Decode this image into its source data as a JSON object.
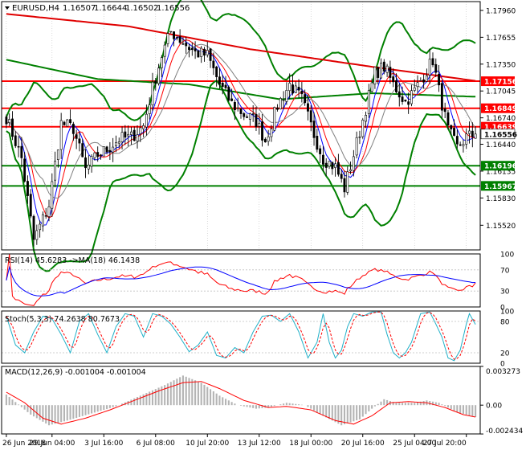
{
  "header": {
    "symbol_label": "EURUSD,H4",
    "ohlc": [
      "1.16507",
      "1.16644",
      "1.16502",
      "1.16556"
    ]
  },
  "colors": {
    "background": "#ffffff",
    "frame": "#000000",
    "grid": "#c0c0c0",
    "candle": "#000000",
    "bollinger": "#008000",
    "sma200": "#e00000",
    "sma50": "#008000",
    "ma_blue": "#0000ff",
    "ma_red": "#ff0000",
    "ma_gray": "#808080",
    "resistance": "#ff0000",
    "support": "#008000",
    "current_price": "#808080",
    "rsi_line": "#ff0000",
    "rsi_ma": "#0000ff",
    "stoch_main": "#20b0c8",
    "stoch_signal": "#ff0000",
    "macd_hist": "#b4b4b4",
    "macd_signal": "#ff0000"
  },
  "price_axis": {
    "min": 1.1524,
    "max": 1.1806,
    "ticks": [
      "1.17960",
      "1.17655",
      "1.17350",
      "1.17045",
      "1.16740",
      "1.16440",
      "1.16135",
      "1.15830",
      "1.15520"
    ]
  },
  "time_axis": {
    "labels": [
      "26 Jun 2018",
      "29 Jun 04:00",
      "3 Jul 16:00",
      "6 Jul 08:00",
      "10 Jul 20:00",
      "13 Jul 12:00",
      "18 Jul 00:00",
      "20 Jul 16:00",
      "25 Jul 04:00",
      "27 Jul 20:00"
    ],
    "label_bars": [
      0,
      15,
      32,
      49,
      66,
      83,
      100,
      117,
      134,
      151
    ]
  },
  "chart_data": [
    {
      "type": "candlestick",
      "symbol": "EURUSD",
      "timeframe": "H4",
      "last_ohlc": {
        "open": 1.16507,
        "high": 1.16644,
        "low": 1.16502,
        "close": 1.16556
      },
      "anchor_closes": [
        [
          0,
          1.1675
        ],
        [
          5,
          1.1628
        ],
        [
          9,
          1.1535
        ],
        [
          14,
          1.1575
        ],
        [
          18,
          1.1668
        ],
        [
          22,
          1.1662
        ],
        [
          26,
          1.1615
        ],
        [
          30,
          1.1632
        ],
        [
          33,
          1.1638
        ],
        [
          37,
          1.165
        ],
        [
          41,
          1.1652
        ],
        [
          45,
          1.1665
        ],
        [
          48,
          1.1708
        ],
        [
          51,
          1.1745
        ],
        [
          54,
          1.1772
        ],
        [
          58,
          1.176
        ],
        [
          62,
          1.1748
        ],
        [
          66,
          1.1745
        ],
        [
          70,
          1.1712
        ],
        [
          74,
          1.169
        ],
        [
          78,
          1.1678
        ],
        [
          82,
          1.167
        ],
        [
          85,
          1.1648
        ],
        [
          89,
          1.1688
        ],
        [
          93,
          1.1712
        ],
        [
          97,
          1.1695
        ],
        [
          101,
          1.1655
        ],
        [
          104,
          1.1628
        ],
        [
          108,
          1.1618
        ],
        [
          111,
          1.1594
        ],
        [
          114,
          1.1632
        ],
        [
          118,
          1.1685
        ],
        [
          121,
          1.1725
        ],
        [
          124,
          1.1732
        ],
        [
          127,
          1.1712
        ],
        [
          131,
          1.1692
        ],
        [
          134,
          1.1705
        ],
        [
          137,
          1.1722
        ],
        [
          140,
          1.174
        ],
        [
          142,
          1.1705
        ],
        [
          145,
          1.166
        ],
        [
          148,
          1.164
        ],
        [
          151,
          1.1652
        ],
        [
          154,
          1.1655
        ]
      ],
      "bars": 155,
      "ma_periods": [
        5,
        8,
        13
      ],
      "sma_long_periods": [
        200,
        50
      ],
      "bollinger": {
        "period": 20,
        "deviations": 2
      },
      "sma200_anchors": [
        [
          0,
          1.1792
        ],
        [
          40,
          1.1778
        ],
        [
          80,
          1.1752
        ],
        [
          120,
          1.1732
        ],
        [
          154,
          1.1716
        ]
      ],
      "sma50_anchors": [
        [
          0,
          1.174
        ],
        [
          30,
          1.1718
        ],
        [
          60,
          1.1712
        ],
        [
          90,
          1.1695
        ],
        [
          120,
          1.1702
        ],
        [
          154,
          1.1698
        ]
      ],
      "horizontal_levels": [
        {
          "price": 1.17156,
          "label": "1.17156",
          "kind": "resistance"
        },
        {
          "price": 1.16849,
          "label": "1.16849",
          "kind": "resistance"
        },
        {
          "price": 1.16639,
          "label": "1.16639",
          "kind": "resistance"
        },
        {
          "price": 1.16556,
          "label": "1.16556",
          "kind": "current"
        },
        {
          "price": 1.16196,
          "label": "1.16196",
          "kind": "support"
        },
        {
          "price": 1.15967,
          "label": "1.15967",
          "kind": "support"
        }
      ]
    },
    {
      "type": "line",
      "indicator": "RSI",
      "period": 14,
      "ma_period": 18,
      "title": "RSI(14) 45.6283 ->MA(18) 46.1438",
      "last_value": 45.6283,
      "ma_last_value": 46.1438,
      "ylim": [
        0,
        100
      ],
      "ticks": [
        "100",
        "70",
        "30",
        "0"
      ],
      "levels": [
        70,
        30
      ]
    },
    {
      "type": "line",
      "indicator": "Stochastic",
      "params": [
        5,
        3,
        3
      ],
      "title": "Stoch(5,3,3) 74.2638 80.7673",
      "main_last": 74.2638,
      "signal_last": 80.7673,
      "ylim": [
        0,
        100
      ],
      "ticks": [
        "100",
        "80",
        "20",
        "0"
      ],
      "levels": [
        80,
        20
      ],
      "series": [
        {
          "name": "main",
          "anchors": [
            [
              0,
              90
            ],
            [
              3,
              35
            ],
            [
              6,
              20
            ],
            [
              9,
              60
            ],
            [
              12,
              90
            ],
            [
              15,
              85
            ],
            [
              18,
              55
            ],
            [
              21,
              20
            ],
            [
              24,
              80
            ],
            [
              27,
              95
            ],
            [
              30,
              55
            ],
            [
              33,
              20
            ],
            [
              36,
              70
            ],
            [
              39,
              95
            ],
            [
              42,
              90
            ],
            [
              45,
              50
            ],
            [
              48,
              95
            ],
            [
              51,
              90
            ],
            [
              54,
              75
            ],
            [
              57,
              50
            ],
            [
              60,
              22
            ],
            [
              63,
              35
            ],
            [
              66,
              60
            ],
            [
              69,
              15
            ],
            [
              72,
              10
            ],
            [
              75,
              30
            ],
            [
              78,
              20
            ],
            [
              81,
              60
            ],
            [
              84,
              90
            ],
            [
              87,
              92
            ],
            [
              90,
              80
            ],
            [
              93,
              95
            ],
            [
              96,
              60
            ],
            [
              99,
              10
            ],
            [
              102,
              40
            ],
            [
              104,
              95
            ],
            [
              106,
              40
            ],
            [
              108,
              10
            ],
            [
              110,
              25
            ],
            [
              112,
              70
            ],
            [
              114,
              95
            ],
            [
              117,
              90
            ],
            [
              120,
              98
            ],
            [
              123,
              98
            ],
            [
              125,
              55
            ],
            [
              127,
              20
            ],
            [
              129,
              10
            ],
            [
              131,
              20
            ],
            [
              133,
              40
            ],
            [
              136,
              95
            ],
            [
              139,
              98
            ],
            [
              141,
              75
            ],
            [
              143,
              50
            ],
            [
              145,
              10
            ],
            [
              147,
              5
            ],
            [
              149,
              25
            ],
            [
              151,
              75
            ],
            [
              152,
              95
            ],
            [
              154,
              74
            ]
          ]
        }
      ]
    },
    {
      "type": "bar",
      "indicator": "MACD",
      "params": [
        12,
        26,
        9
      ],
      "title": "MACD(12,26,9) -0.001004 -0.001004",
      "macd_last": -0.001004,
      "signal_last": -0.001004,
      "ylim": [
        -0.00243,
        0.00327
      ],
      "ticks": [
        "0.003273",
        "0.00",
        "-0.002434"
      ],
      "series": [
        {
          "name": "macd_hist",
          "anchors": [
            [
              0,
              0.0009
            ],
            [
              8,
              -0.0008
            ],
            [
              14,
              -0.0017
            ],
            [
              20,
              -0.0013
            ],
            [
              28,
              -0.0007
            ],
            [
              36,
              -0.0001
            ],
            [
              44,
              0.0008
            ],
            [
              52,
              0.0017
            ],
            [
              58,
              0.0025
            ],
            [
              64,
              0.0019
            ],
            [
              70,
              0.0008
            ],
            [
              76,
              0.0
            ],
            [
              82,
              -0.0003
            ],
            [
              86,
              -0.0002
            ],
            [
              92,
              0.0002
            ],
            [
              98,
              0.0
            ],
            [
              104,
              -0.0009
            ],
            [
              110,
              -0.0017
            ],
            [
              116,
              -0.0012
            ],
            [
              120,
              -0.0003
            ],
            [
              124,
              0.0005
            ],
            [
              128,
              0.0002
            ],
            [
              134,
              0.0002
            ],
            [
              138,
              0.0004
            ],
            [
              142,
              0.0002
            ],
            [
              148,
              -0.0006
            ],
            [
              154,
              -0.001
            ]
          ]
        },
        {
          "name": "signal",
          "anchors": [
            [
              0,
              0.0011
            ],
            [
              6,
              0.0002
            ],
            [
              12,
              -0.0011
            ],
            [
              18,
              -0.0016
            ],
            [
              26,
              -0.0011
            ],
            [
              34,
              -0.0004
            ],
            [
              42,
              0.0004
            ],
            [
              50,
              0.0012
            ],
            [
              58,
              0.0019
            ],
            [
              64,
              0.002
            ],
            [
              70,
              0.0014
            ],
            [
              78,
              0.0004
            ],
            [
              86,
              -0.0002
            ],
            [
              92,
              -0.0001
            ],
            [
              100,
              -0.0004
            ],
            [
              108,
              -0.0013
            ],
            [
              114,
              -0.0016
            ],
            [
              120,
              -0.0009
            ],
            [
              126,
              0.0002
            ],
            [
              132,
              0.0003
            ],
            [
              138,
              0.0002
            ],
            [
              144,
              -0.0002
            ],
            [
              150,
              -0.0008
            ],
            [
              154,
              -0.001
            ]
          ]
        }
      ]
    }
  ]
}
